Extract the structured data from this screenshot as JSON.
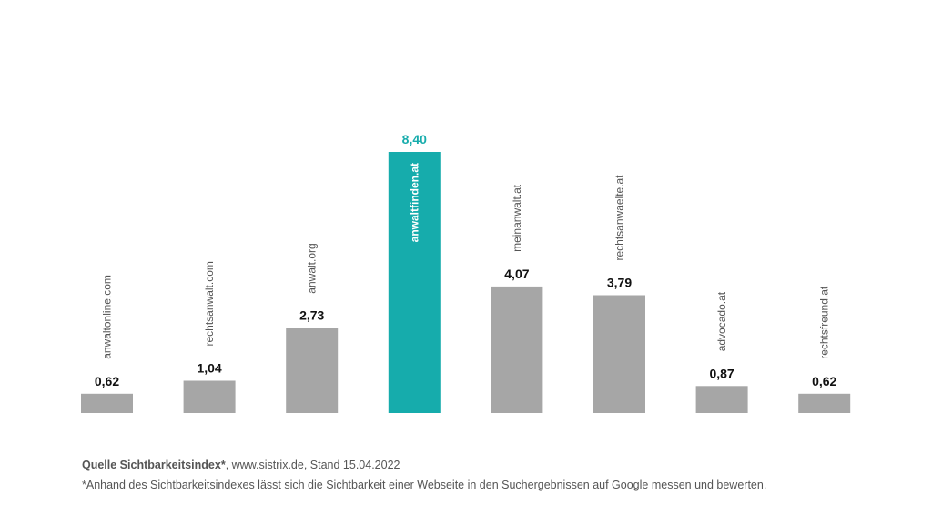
{
  "chart_data": {
    "type": "bar",
    "categories": [
      "anwaltonline.com",
      "rechtsanwalt.com",
      "anwalt.org",
      "anwaltfinden.at",
      "meinanwalt.at",
      "rechtsanwaelte.at",
      "advocado.at",
      "rechtsfreund.at"
    ],
    "values": [
      0.62,
      1.04,
      2.73,
      8.4,
      4.07,
      3.79,
      0.87,
      0.62
    ],
    "value_labels": [
      "0,62",
      "1,04",
      "2,73",
      "8,40",
      "4,07",
      "3,79",
      "0,87",
      "0,62"
    ],
    "highlight_index": 3,
    "ylim": [
      0,
      8.4
    ],
    "grid": false,
    "legend": "none",
    "colors": {
      "default": "#a6a6a6",
      "highlight": "#16acac",
      "value_text": "#111111",
      "label_text": "#555555",
      "highlight_label_text": "#ffffff"
    }
  },
  "footer": {
    "source_bold": "Quelle Sichtbarkeitsindex*",
    "source_rest": ", www.sistrix.de, Stand 15.04.2022",
    "note": "*Anhand des Sichtbarkeitsindexes lässt sich die Sichtbarkeit einer Webseite in den Suchergebnissen auf Google messen und bewerten."
  }
}
